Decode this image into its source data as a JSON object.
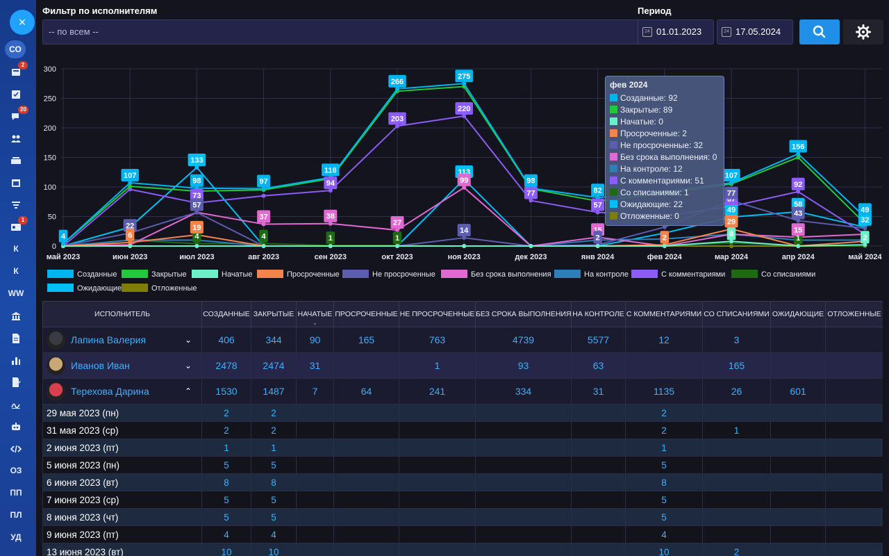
{
  "sidebar": {
    "close_icon": "×",
    "active_label": "СО",
    "items": [
      {
        "icon": "inbox-icon",
        "badge": "2"
      },
      {
        "icon": "checkbox-icon",
        "badge": ""
      },
      {
        "icon": "chat-icon",
        "badge": "20"
      },
      {
        "icon": "users-icon",
        "badge": ""
      },
      {
        "icon": "tray-icon",
        "badge": ""
      },
      {
        "icon": "calendar-icon",
        "badge": ""
      },
      {
        "icon": "filter-icon",
        "badge": ""
      },
      {
        "icon": "id-card-icon",
        "badge": "1"
      },
      {
        "label": "К"
      },
      {
        "label": "К"
      },
      {
        "label": "WW"
      },
      {
        "icon": "bank-icon",
        "badge": ""
      },
      {
        "icon": "document-icon",
        "badge": ""
      },
      {
        "icon": "bar-chart-icon",
        "badge": ""
      },
      {
        "icon": "edit-document-icon",
        "badge": ""
      },
      {
        "icon": "signature-icon",
        "badge": ""
      },
      {
        "icon": "robot-icon",
        "badge": ""
      },
      {
        "icon": "code-icon",
        "badge": ""
      },
      {
        "label": "ОЗ"
      },
      {
        "label": "ПП"
      },
      {
        "label": "ПЛ"
      },
      {
        "label": "УД"
      }
    ]
  },
  "filters": {
    "executor_label": "Фильтр по исполнителям",
    "executor_value": "-- по всем --",
    "period_label": "Период",
    "date_from": "01.01.2023",
    "date_to": "17.05.2024",
    "calendar_day": "24"
  },
  "chart_data": {
    "type": "line",
    "categories": [
      "май 2023",
      "июн 2023",
      "июл 2023",
      "авг 2023",
      "сен 2023",
      "окт 2023",
      "ноя 2023",
      "дек 2023",
      "янв 2024",
      "фев 2024",
      "мар 2024",
      "апр 2024",
      "май 2024"
    ],
    "ylim": [
      0,
      300
    ],
    "yticks": [
      0,
      50,
      100,
      150,
      200,
      250,
      300
    ],
    "grid": true,
    "legend_position": "bottom",
    "series": [
      {
        "name": "Созданные",
        "color": "#00b4f0",
        "values": [
          4,
          107,
          98,
          97,
          116,
          266,
          275,
          98,
          82,
          92,
          107,
          156,
          49
        ],
        "labels": [
          4,
          107,
          98,
          97,
          116,
          266,
          275,
          98,
          82,
          null,
          107,
          156,
          49
        ]
      },
      {
        "name": "Закрытые",
        "color": "#22c93a",
        "values": [
          4,
          101,
          93,
          95,
          114,
          262,
          270,
          97,
          76,
          89,
          105,
          150,
          38
        ],
        "labels": []
      },
      {
        "name": "Начатые",
        "color": "#6cf0c8",
        "values": [
          0,
          0,
          0,
          0,
          0,
          0,
          0,
          0,
          0,
          0,
          8,
          0,
          2
        ],
        "labels": [
          null,
          null,
          null,
          null,
          null,
          null,
          null,
          null,
          null,
          null,
          8,
          null,
          2
        ]
      },
      {
        "name": "Просроченные",
        "color": "#f5834c",
        "values": [
          0,
          6,
          19,
          0,
          0,
          0,
          0,
          0,
          0,
          2,
          29,
          0,
          8
        ],
        "labels": [
          null,
          6,
          19,
          null,
          null,
          null,
          null,
          null,
          null,
          2,
          29,
          null,
          null
        ]
      },
      {
        "name": "Не просроченные",
        "color": "#5c5cb0",
        "values": [
          0,
          22,
          57,
          0,
          0,
          0,
          14,
          0,
          2,
          32,
          77,
          43,
          30
        ],
        "labels": [
          null,
          22,
          57,
          null,
          null,
          null,
          14,
          null,
          2,
          null,
          77,
          43,
          null
        ]
      },
      {
        "name": "Без срока выполнения",
        "color": "#e06ad2",
        "values": [
          0,
          2,
          57,
          37,
          38,
          27,
          99,
          0,
          15,
          0,
          20,
          15,
          20
        ],
        "labels": [
          null,
          null,
          null,
          37,
          38,
          27,
          99,
          null,
          15,
          null,
          null,
          15,
          null
        ]
      },
      {
        "name": "На контроле",
        "color": "#2c7fb8",
        "values": [
          0,
          10,
          10,
          0,
          0,
          0,
          0,
          0,
          10,
          12,
          20,
          10,
          10
        ],
        "labels": []
      },
      {
        "name": "С комментариями",
        "color": "#8b5cf6",
        "values": [
          0,
          96,
          73,
          85,
          94,
          203,
          220,
          77,
          57,
          51,
          67,
          92,
          20
        ],
        "labels": [
          null,
          null,
          73,
          null,
          94,
          203,
          220,
          77,
          57,
          null,
          67,
          92,
          null
        ]
      },
      {
        "name": "Со списаниями",
        "color": "#1f6b12",
        "values": [
          0,
          10,
          4,
          4,
          1,
          1,
          0,
          0,
          0,
          1,
          5,
          1,
          0
        ],
        "labels": [
          null,
          null,
          4,
          4,
          1,
          1,
          null,
          null,
          null,
          null,
          null,
          1,
          null
        ]
      },
      {
        "name": "Ожидающие",
        "color": "#00bff5",
        "values": [
          0,
          32,
          133,
          0,
          0,
          0,
          113,
          0,
          0,
          22,
          49,
          58,
          32
        ],
        "labels": [
          null,
          null,
          133,
          null,
          null,
          null,
          113,
          null,
          null,
          null,
          49,
          58,
          32
        ]
      },
      {
        "name": "Отложенные",
        "color": "#7d7d0a",
        "values": [
          0,
          0,
          0,
          0,
          0,
          0,
          0,
          0,
          0,
          0,
          0,
          0,
          0
        ],
        "labels": []
      }
    ]
  },
  "tooltip": {
    "title": "фев 2024",
    "rows": [
      {
        "text": "Созданные: 92",
        "color": "#00b4f0"
      },
      {
        "text": "Закрытые: 89",
        "color": "#22c93a"
      },
      {
        "text": "Начатые: 0",
        "color": "#6cf0c8"
      },
      {
        "text": "Просроченные: 2",
        "color": "#f5834c"
      },
      {
        "text": "Не просроченные: 32",
        "color": "#5c5cb0"
      },
      {
        "text": "Без срока выполнения: 0",
        "color": "#e06ad2"
      },
      {
        "text": "На контроле: 12",
        "color": "#2c7fb8"
      },
      {
        "text": "С комментариями: 51",
        "color": "#8b5cf6"
      },
      {
        "text": "Со списаниями: 1",
        "color": "#1f6b12"
      },
      {
        "text": "Ожидающие: 22",
        "color": "#00bff5"
      },
      {
        "text": "Отложенные: 0",
        "color": "#7d7d0a"
      }
    ]
  },
  "table": {
    "headers": [
      "ИСПОЛНИТЕЛЬ",
      "СОЗДАННЫЕ",
      "ЗАКРЫТЫЕ",
      "НАЧАТЫЕ",
      "ПРОСРОЧЕННЫЕ",
      "НЕ ПРОСРОЧЕННЫЕ",
      "БЕЗ СРОКА ВЫПОЛНЕНИЯ",
      "НА КОНТРОЛЕ",
      "С КОММЕНТАРИЯМИ",
      "СО СПИСАНИЯМИ",
      "ОЖИДАЮЩИЕ",
      "ОТЛОЖЕННЫЕ"
    ],
    "sort_indicator": "⌄",
    "executors": [
      {
        "name": "Лапина Валерия",
        "expand": "⌄",
        "cells": [
          "406",
          "344",
          "90",
          "165",
          "763",
          "4739",
          "5577",
          "12",
          "3",
          "",
          ""
        ]
      },
      {
        "name": "Иванов Иван",
        "expand": "⌄",
        "cells": [
          "2478",
          "2474",
          "31",
          "",
          "1",
          "93",
          "63",
          "",
          "165",
          "",
          ""
        ]
      },
      {
        "name": "Терехова Дарина",
        "expand": "⌃",
        "cells": [
          "1530",
          "1487",
          "7",
          "64",
          "241",
          "334",
          "31",
          "1135",
          "26",
          "601",
          ""
        ]
      }
    ],
    "days": [
      {
        "date": "29 мая 2023 (пн)",
        "cells": [
          "2",
          "2",
          "",
          "",
          "",
          "",
          "",
          "2",
          "",
          "",
          ""
        ]
      },
      {
        "date": "31 мая 2023 (ср)",
        "cells": [
          "2",
          "2",
          "",
          "",
          "",
          "",
          "",
          "2",
          "1",
          "",
          ""
        ]
      },
      {
        "date": "2 июня 2023 (пт)",
        "cells": [
          "1",
          "1",
          "",
          "",
          "",
          "",
          "",
          "1",
          "",
          "",
          ""
        ]
      },
      {
        "date": "5 июня 2023 (пн)",
        "cells": [
          "5",
          "5",
          "",
          "",
          "",
          "",
          "",
          "5",
          "",
          "",
          ""
        ]
      },
      {
        "date": "6 июня 2023 (вт)",
        "cells": [
          "8",
          "8",
          "",
          "",
          "",
          "",
          "",
          "8",
          "",
          "",
          ""
        ]
      },
      {
        "date": "7 июня 2023 (ср)",
        "cells": [
          "5",
          "5",
          "",
          "",
          "",
          "",
          "",
          "5",
          "",
          "",
          ""
        ]
      },
      {
        "date": "8 июня 2023 (чт)",
        "cells": [
          "5",
          "5",
          "",
          "",
          "",
          "",
          "",
          "5",
          "",
          "",
          ""
        ]
      },
      {
        "date": "9 июня 2023 (пт)",
        "cells": [
          "4",
          "4",
          "",
          "",
          "",
          "",
          "",
          "4",
          "",
          "",
          ""
        ]
      },
      {
        "date": "13 июня 2023 (вт)",
        "cells": [
          "10",
          "10",
          "",
          "",
          "",
          "",
          "",
          "10",
          "2",
          "",
          ""
        ]
      }
    ]
  }
}
